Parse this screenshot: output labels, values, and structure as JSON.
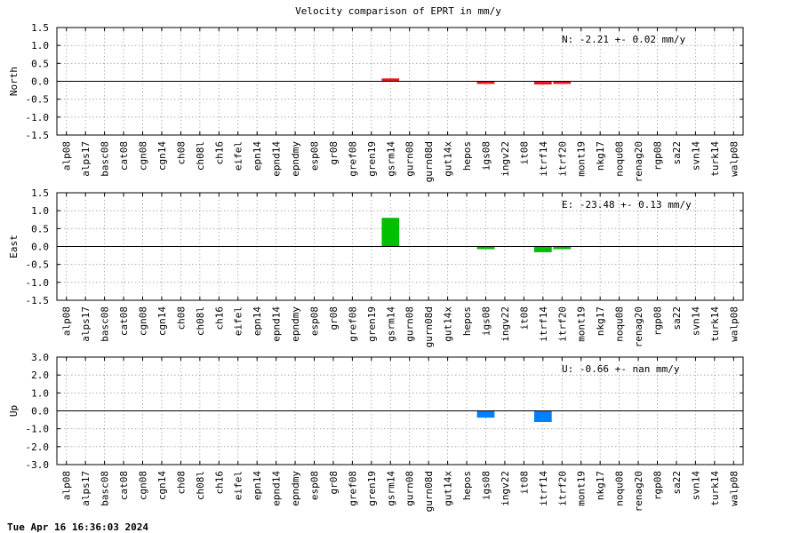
{
  "title": "Velocity comparison of EPRT in mm/y",
  "timestamp": "Tue Apr 16 16:36:03 2024",
  "colors": {
    "north": "#e41a1c",
    "east": "#00c000",
    "up": "#0080ff"
  },
  "chart_data": [
    {
      "type": "bar",
      "ylabel": "North",
      "ylim": [
        -1.5,
        1.5
      ],
      "yticks": [
        "1.5",
        "1.0",
        "0.5",
        "0.0",
        "-0.5",
        "-1.0",
        "-1.5"
      ],
      "ytick_values": [
        1.5,
        1.0,
        0.5,
        0.0,
        -0.5,
        -1.0,
        -1.5
      ],
      "annotation": "N:  -2.21 +-  0.02 mm/y",
      "categories": [
        "alp08",
        "alps17",
        "basc08",
        "cat08",
        "cgn08",
        "cgn14",
        "ch08",
        "ch08l",
        "ch16",
        "eifel",
        "epn14",
        "epnd14",
        "epndmy",
        "esp08",
        "gr08",
        "gref08",
        "gren19",
        "gsrm14",
        "gurn08",
        "gurn08d",
        "gut14x",
        "hepos",
        "igs08",
        "ingv22",
        "it08",
        "itrf14",
        "itrf20",
        "mont19",
        "nkg17",
        "noqu08",
        "renag20",
        "rgp08",
        "sa22",
        "svn14",
        "turk14",
        "walp08"
      ],
      "values": [
        0,
        0,
        0,
        0,
        0,
        0,
        0,
        0,
        0,
        0,
        0,
        0,
        0,
        0,
        0,
        0,
        0,
        0.08,
        0,
        0,
        0,
        0,
        -0.02,
        0,
        0,
        -0.09,
        -0.02,
        0,
        0,
        0,
        0,
        0,
        0,
        0,
        0,
        0
      ],
      "grid": true
    },
    {
      "type": "bar",
      "ylabel": "East",
      "ylim": [
        -1.5,
        1.5
      ],
      "yticks": [
        "1.5",
        "1.0",
        "0.5",
        "0.0",
        "-0.5",
        "-1.0",
        "-1.5"
      ],
      "ytick_values": [
        1.5,
        1.0,
        0.5,
        0.0,
        -0.5,
        -1.0,
        -1.5
      ],
      "annotation": "E: -23.48 +-  0.13 mm/y",
      "categories": [
        "alp08",
        "alps17",
        "basc08",
        "cat08",
        "cgn08",
        "cgn14",
        "ch08",
        "ch08l",
        "ch16",
        "eifel",
        "epn14",
        "epnd14",
        "epndmy",
        "esp08",
        "gr08",
        "gref08",
        "gren19",
        "gsrm14",
        "gurn08",
        "gurn08d",
        "gut14x",
        "hepos",
        "igs08",
        "ingv22",
        "it08",
        "itrf14",
        "itrf20",
        "mont19",
        "nkg17",
        "noqu08",
        "renag20",
        "rgp08",
        "sa22",
        "svn14",
        "turk14",
        "walp08"
      ],
      "values": [
        0,
        0,
        0,
        0,
        0,
        0,
        0,
        0,
        0,
        0,
        0,
        0,
        0,
        0,
        0,
        0,
        0,
        0.8,
        0,
        0,
        0,
        0,
        -0.05,
        0,
        0,
        -0.16,
        -0.05,
        0,
        0,
        0,
        0,
        0,
        0,
        0,
        0,
        0
      ],
      "grid": true
    },
    {
      "type": "bar",
      "ylabel": "Up",
      "ylim": [
        -3.0,
        3.0
      ],
      "yticks": [
        "3.0",
        "2.0",
        "1.0",
        "0.0",
        "-1.0",
        "-2.0",
        "-3.0"
      ],
      "ytick_values": [
        3.0,
        2.0,
        1.0,
        0.0,
        -1.0,
        -2.0,
        -3.0
      ],
      "annotation": "U:  -0.66 +-   nan mm/y",
      "categories": [
        "alp08",
        "alps17",
        "basc08",
        "cat08",
        "cgn08",
        "cgn14",
        "ch08",
        "ch08l",
        "ch16",
        "eifel",
        "epn14",
        "epnd14",
        "epndmy",
        "esp08",
        "gr08",
        "gref08",
        "gren19",
        "gsrm14",
        "gurn08",
        "gurn08d",
        "gut14x",
        "hepos",
        "igs08",
        "ingv22",
        "it08",
        "itrf14",
        "itrf20",
        "mont19",
        "nkg17",
        "noqu08",
        "renag20",
        "rgp08",
        "sa22",
        "svn14",
        "turk14",
        "walp08"
      ],
      "values": [
        0,
        0,
        0,
        0,
        0,
        0,
        0,
        0,
        0,
        0,
        0,
        0,
        0,
        0,
        0,
        0,
        0,
        0,
        0,
        0,
        0,
        0,
        -0.38,
        0,
        0,
        -0.62,
        0,
        0,
        0,
        0,
        0,
        0,
        0,
        0,
        0,
        0
      ],
      "grid": true
    }
  ]
}
